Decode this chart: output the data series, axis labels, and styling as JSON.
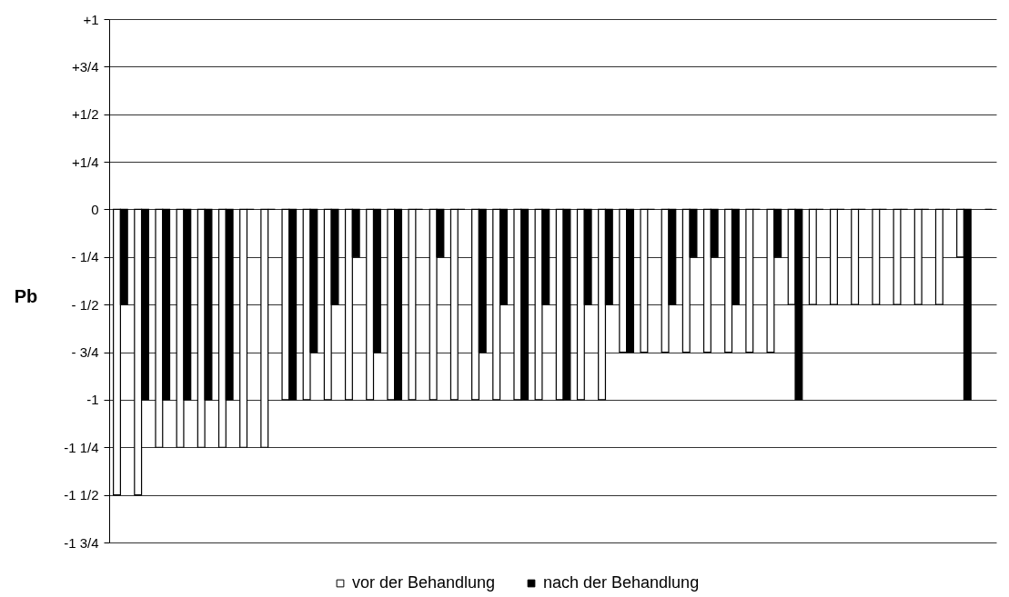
{
  "chart_data": {
    "type": "bar",
    "ylabel": "Pb",
    "categories": [
      null,
      null,
      null,
      null,
      null,
      null,
      null,
      null,
      null,
      null,
      null,
      null,
      null,
      null,
      null,
      null,
      null,
      null,
      null,
      null,
      null,
      null,
      null,
      null,
      null,
      null,
      null,
      null,
      null,
      null,
      null,
      null,
      null,
      null,
      null,
      null,
      null,
      null,
      null,
      null,
      null,
      null
    ],
    "series": [
      {
        "name": "vor der Behandlung",
        "color": "#ffffff",
        "values": [
          -1.5,
          -1.5,
          -1.25,
          -1.25,
          -1.25,
          -1.25,
          -1.25,
          -1.25,
          -1,
          -1,
          -1,
          -1,
          -1,
          -1,
          -1,
          -1,
          -1,
          -1,
          -1,
          -1,
          -1,
          -1,
          -1,
          -1,
          -0.75,
          -0.75,
          -0.75,
          -0.75,
          -0.75,
          -0.75,
          -0.75,
          -0.75,
          -0.5,
          -0.5,
          -0.5,
          -0.5,
          -0.5,
          -0.5,
          -0.5,
          -0.5,
          -0.25,
          null
        ]
      },
      {
        "name": "nach der Behandlung",
        "color": "#000000",
        "values": [
          -0.5,
          -1,
          -1,
          -1,
          -1,
          -1,
          0,
          0,
          -1,
          -0.75,
          -0.5,
          -0.25,
          -0.75,
          -1,
          0,
          -0.25,
          0,
          -0.75,
          -0.5,
          -1,
          -0.5,
          -1,
          -0.5,
          -0.5,
          -0.75,
          0,
          -0.5,
          -0.25,
          -0.25,
          -0.5,
          0,
          -0.25,
          -1,
          0,
          0,
          0,
          0,
          0,
          0,
          0,
          -1,
          0
        ]
      }
    ],
    "ylim": [
      -1.75,
      1
    ],
    "yticks": [
      {
        "value": -1.75,
        "label": "-1 3/4"
      },
      {
        "value": -1.5,
        "label": "-1 1/2"
      },
      {
        "value": -1.25,
        "label": "-1 1/4"
      },
      -1,
      {
        "value": -0.75,
        "label": "- 3/4"
      },
      {
        "value": -0.5,
        "label": "- 1/2"
      },
      {
        "value": -0.25,
        "label": "- 1/4"
      },
      0,
      {
        "value": 0.25,
        "label": "+1/4"
      },
      {
        "value": 0.5,
        "label": "+1/2"
      },
      {
        "value": 0.75,
        "label": "+3/4"
      },
      {
        "value": 1,
        "label": "+1"
      }
    ],
    "grid": "y",
    "legend": "bottom"
  }
}
